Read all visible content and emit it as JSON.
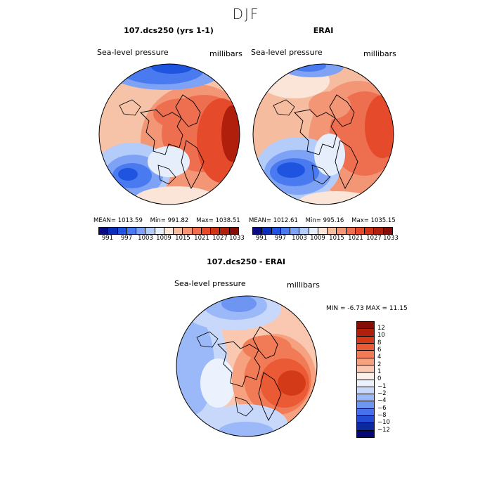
{
  "season": "DJF",
  "panels": [
    {
      "title": "107.dcs250 (yrs 1-1)",
      "variable": "Sea-level pressure",
      "units": "millibars",
      "mean_label": "MEAN=",
      "mean": "1013.59",
      "min_label": "Min=",
      "min": "991.82",
      "max_label": "Max=",
      "max": "1038.51"
    },
    {
      "title": "ERAI",
      "variable": "Sea-level pressure",
      "units": "millibars",
      "mean_label": "MEAN=",
      "mean": "1012.61",
      "min_label": "Min=",
      "min": "995.16",
      "max_label": "Max=",
      "max": "1035.15"
    }
  ],
  "colorbar": {
    "ticks": [
      "991",
      "997",
      "1003",
      "1009",
      "1015",
      "1021",
      "1027",
      "1033"
    ],
    "colors": [
      "#0a0a82",
      "#0b2fb8",
      "#1f54e0",
      "#4a7af0",
      "#7ea3f6",
      "#b4ccfa",
      "#e6eefc",
      "#fbe5d9",
      "#f6bca0",
      "#f29676",
      "#ee6f50",
      "#e54a2b",
      "#cf3416",
      "#b01f0c",
      "#860c06"
    ]
  },
  "diff": {
    "title": "107.dcs250 - ERAI",
    "variable": "Sea-level pressure",
    "units": "millibars",
    "stats": "MIN =   -6.73 MAX =   11.15",
    "levels": [
      "12",
      "10",
      "8",
      "6",
      "4",
      "2",
      "1",
      "0",
      "−1",
      "−2",
      "−4",
      "−6",
      "−8",
      "−10",
      "−12"
    ],
    "colors": [
      "#860c06",
      "#b01f0c",
      "#d33a18",
      "#ea5a34",
      "#f17b57",
      "#f6a17f",
      "#fac8b0",
      "#fdf0e8",
      "#ecf2fd",
      "#c8d8fb",
      "#9bb8f8",
      "#6f95f3",
      "#4670ec",
      "#234bd6",
      "#0b2a9e",
      "#050873"
    ]
  }
}
